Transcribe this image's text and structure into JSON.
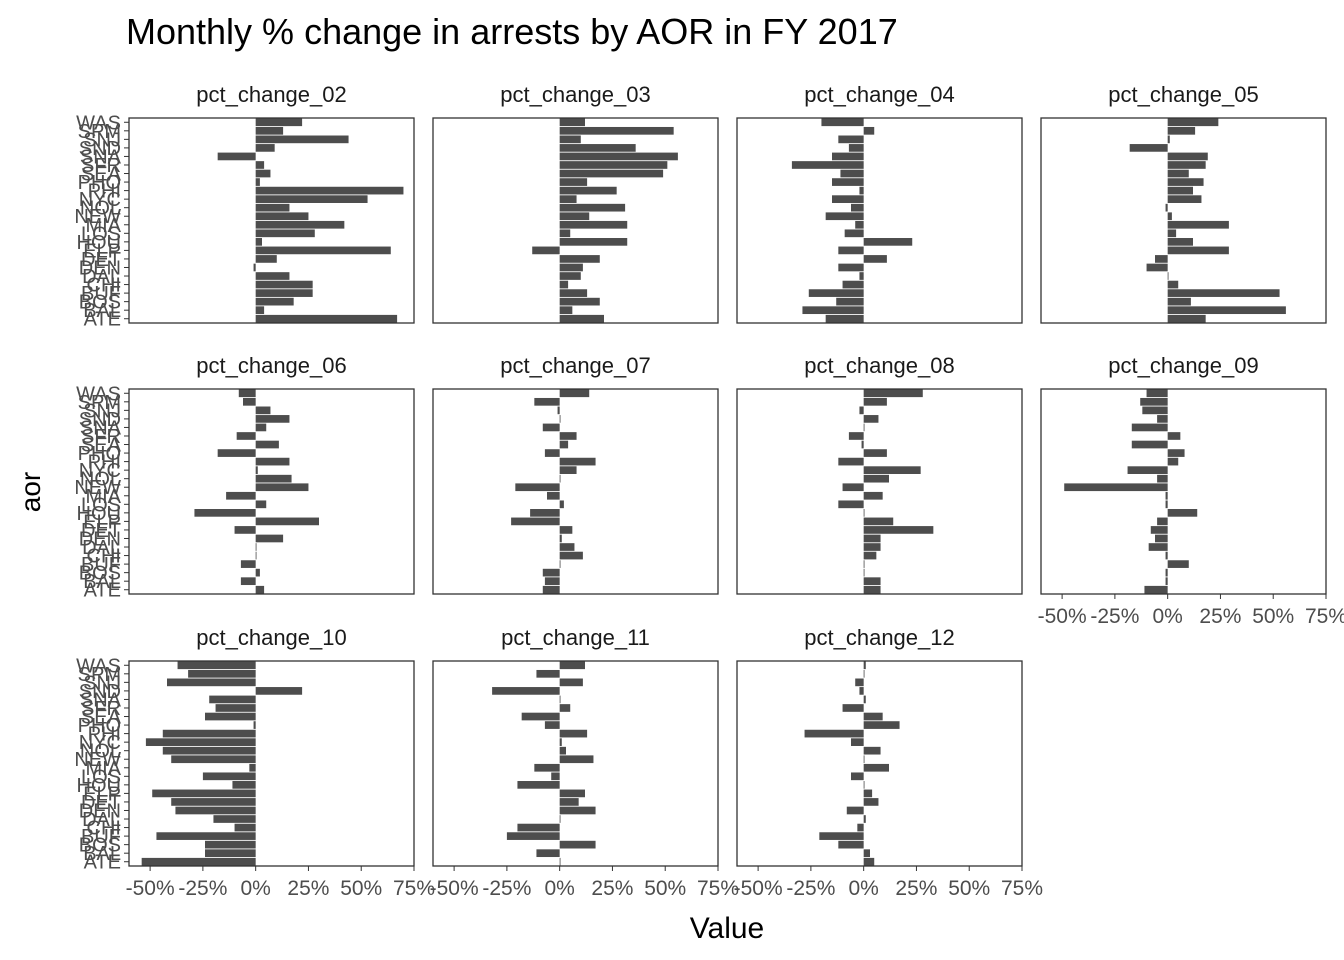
{
  "chart_data": {
    "type": "bar",
    "orientation": "horizontal",
    "title": "Monthly % change in arrests by AOR in FY 2017",
    "xlabel": "Value",
    "ylabel": "aor",
    "xlim": [
      -0.6,
      0.75
    ],
    "x_ticks": [
      -0.5,
      -0.25,
      0,
      0.25,
      0.5,
      0.75
    ],
    "x_tick_labels": [
      "-50%",
      "-25%",
      "0%",
      "25%",
      "50%",
      "75%"
    ],
    "grid": false,
    "legend": "none",
    "bar_color": "#4d4d4d",
    "categories": [
      "ATE",
      "BAL",
      "BOS",
      "BUF",
      "CHI",
      "DAL",
      "DEN",
      "DET",
      "ELP",
      "HOU",
      "LOS",
      "MIA",
      "NEW",
      "NOL",
      "NYC",
      "PHI",
      "PHO",
      "SEA",
      "SFR",
      "SNA",
      "SND",
      "SNJ",
      "SPM",
      "WAS"
    ],
    "visible_category_labels": [
      "ATE",
      "BAL",
      "BOS",
      "BUF",
      "CHI",
      "DAL",
      "DEN",
      "DET",
      "ELP",
      "HOU",
      "LOS",
      "MIA",
      "NEW",
      "NOL",
      "NYC",
      "PHI",
      "PHO",
      "SEA",
      "SFR",
      "SNA",
      "SND",
      "SNJ",
      "SPM",
      "WAS"
    ],
    "series": [
      {
        "name": "pct_change_02",
        "values": [
          0.67,
          0.04,
          0.18,
          0.27,
          0.27,
          0.16,
          -0.01,
          0.1,
          0.64,
          0.03,
          0.28,
          0.42,
          0.25,
          0.16,
          0.53,
          0.7,
          0.02,
          0.07,
          0.04,
          -0.18,
          0.09,
          0.44,
          0.13,
          0.22
        ]
      },
      {
        "name": "pct_change_03",
        "values": [
          0.21,
          0.06,
          0.19,
          0.13,
          0.04,
          0.1,
          0.11,
          0.19,
          -0.13,
          0.32,
          0.05,
          0.32,
          0.14,
          0.31,
          0.08,
          0.27,
          0.13,
          0.49,
          0.51,
          0.56,
          0.36,
          0.1,
          0.54,
          0.12
        ]
      },
      {
        "name": "pct_change_04",
        "values": [
          -0.18,
          -0.29,
          -0.13,
          -0.26,
          -0.1,
          -0.02,
          -0.12,
          0.11,
          -0.12,
          0.23,
          -0.09,
          -0.04,
          -0.18,
          -0.06,
          -0.15,
          -0.02,
          -0.15,
          -0.11,
          -0.34,
          -0.15,
          -0.07,
          -0.12,
          0.05,
          -0.2
        ]
      },
      {
        "name": "pct_change_05",
        "values": [
          0.18,
          0.56,
          0.11,
          0.53,
          0.05,
          0.0,
          -0.1,
          -0.06,
          0.29,
          0.12,
          0.04,
          0.29,
          0.02,
          -0.01,
          0.16,
          0.12,
          0.17,
          0.1,
          0.18,
          0.19,
          -0.18,
          0.01,
          0.13,
          0.24
        ]
      },
      {
        "name": "pct_change_06",
        "values": [
          0.04,
          -0.07,
          0.02,
          -0.07,
          0.0,
          0.0,
          0.13,
          -0.1,
          0.3,
          -0.29,
          0.05,
          -0.14,
          0.25,
          0.17,
          0.01,
          0.16,
          -0.18,
          0.11,
          -0.09,
          0.05,
          0.16,
          0.07,
          -0.06,
          -0.08
        ]
      },
      {
        "name": "pct_change_07",
        "values": [
          -0.08,
          -0.07,
          -0.08,
          0.0,
          0.11,
          0.07,
          0.01,
          0.06,
          -0.23,
          -0.14,
          0.02,
          -0.06,
          -0.21,
          0.0,
          0.08,
          0.17,
          -0.07,
          0.04,
          0.08,
          -0.08,
          0.0,
          -0.01,
          -0.12,
          0.14
        ]
      },
      {
        "name": "pct_change_08",
        "values": [
          0.08,
          0.08,
          0.0,
          0.0,
          0.06,
          0.08,
          0.08,
          0.33,
          0.14,
          0.0,
          -0.12,
          0.09,
          -0.1,
          0.12,
          0.27,
          -0.12,
          0.11,
          -0.01,
          -0.07,
          0.0,
          0.07,
          -0.02,
          0.11,
          0.28
        ]
      },
      {
        "name": "pct_change_09",
        "values": [
          -0.11,
          -0.01,
          -0.01,
          0.1,
          -0.01,
          -0.09,
          -0.06,
          -0.08,
          -0.05,
          0.14,
          -0.01,
          -0.01,
          -0.49,
          -0.05,
          -0.19,
          0.05,
          0.08,
          -0.17,
          0.06,
          -0.17,
          -0.05,
          -0.12,
          -0.13,
          -0.1
        ]
      },
      {
        "name": "pct_change_10",
        "values": [
          -0.54,
          -0.24,
          -0.24,
          -0.47,
          -0.1,
          -0.2,
          -0.38,
          -0.4,
          -0.49,
          -0.11,
          -0.25,
          -0.03,
          -0.4,
          -0.44,
          -0.52,
          -0.44,
          -0.01,
          -0.24,
          -0.19,
          -0.22,
          0.22,
          -0.42,
          -0.32,
          -0.37
        ]
      },
      {
        "name": "pct_change_11",
        "values": [
          0.0,
          -0.11,
          0.17,
          -0.25,
          -0.2,
          0.0,
          0.17,
          0.09,
          0.12,
          -0.2,
          -0.04,
          -0.12,
          0.16,
          0.03,
          0.01,
          0.13,
          -0.07,
          -0.18,
          0.05,
          0.0,
          -0.32,
          0.11,
          -0.11,
          0.12
        ]
      },
      {
        "name": "pct_change_12",
        "values": [
          0.05,
          0.03,
          -0.12,
          -0.21,
          -0.03,
          0.01,
          -0.08,
          0.07,
          0.04,
          0.0,
          -0.06,
          0.12,
          0.0,
          0.08,
          -0.06,
          -0.28,
          0.17,
          0.09,
          -0.1,
          0.01,
          -0.02,
          -0.04,
          0.0,
          0.01
        ]
      }
    ]
  }
}
